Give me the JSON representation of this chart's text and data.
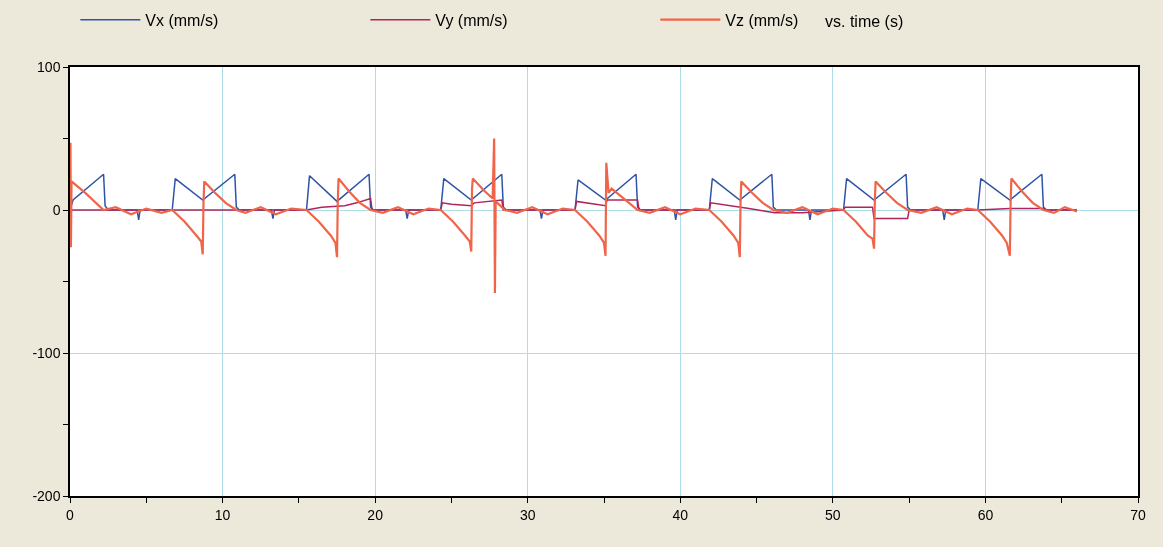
{
  "chart_data": {
    "type": "line",
    "annotations": [
      "vs. time (s)"
    ],
    "xlim": [
      0,
      70
    ],
    "xticks": [
      0,
      {
        "value": 5,
        "label": null
      },
      10,
      {
        "value": 15,
        "label": null
      },
      20,
      {
        "value": 25,
        "label": null
      },
      30,
      {
        "value": 35,
        "label": null
      },
      40,
      {
        "value": 45,
        "label": null
      },
      50,
      {
        "value": 55,
        "label": null
      },
      60,
      {
        "value": 65,
        "label": null
      },
      70
    ],
    "ylim": [
      -200,
      100
    ],
    "yticks": [
      -200,
      {
        "value": -150,
        "label": null
      },
      -100,
      {
        "value": -50,
        "label": null
      },
      0,
      {
        "value": 50,
        "label": null
      },
      100
    ],
    "grid": true,
    "legend": "top",
    "marker": "none",
    "line_style": "solid",
    "series": [
      {
        "name": "Vx (mm/s)",
        "color": "#2f54a5",
        "x": [
          0,
          0.2,
          2.2,
          2.3,
          2.5,
          4.4,
          4.5,
          4.6,
          6.7,
          6.9,
          8.7,
          10.8,
          10.9,
          11.1,
          13.2,
          13.3,
          13.4,
          15.5,
          15.7,
          17.5,
          19.6,
          19.7,
          19.9,
          22.0,
          22.1,
          22.2,
          24.3,
          24.5,
          26.3,
          28.3,
          28.4,
          28.6,
          30.8,
          30.9,
          31.0,
          33.1,
          33.3,
          35.1,
          37.1,
          37.2,
          37.4,
          39.6,
          39.7,
          39.8,
          41.9,
          42.1,
          43.9,
          46.0,
          46.1,
          46.3,
          48.4,
          48.5,
          48.6,
          50.7,
          50.9,
          52.7,
          54.8,
          54.9,
          55.1,
          57.2,
          57.3,
          57.4,
          59.5,
          59.7,
          61.6,
          63.7,
          63.8,
          64.0,
          66.0
        ],
        "values": [
          0,
          7,
          25,
          3,
          0,
          0,
          -7,
          0,
          0,
          22,
          7,
          25,
          2,
          0,
          0,
          -6,
          0,
          0,
          24,
          6,
          25,
          2,
          0,
          0,
          -6,
          0,
          0,
          22,
          7,
          25,
          2,
          0,
          0,
          -6,
          0,
          0,
          21,
          7,
          25,
          2,
          0,
          0,
          -7,
          0,
          0,
          22,
          7,
          25,
          2,
          0,
          0,
          -7,
          0,
          0,
          22,
          7,
          25,
          2,
          0,
          0,
          -7,
          0,
          0,
          22,
          7,
          25,
          2,
          0,
          0
        ]
      },
      {
        "name": "Vy (mm/s)",
        "color": "#b0245a",
        "x": [
          0,
          15.5,
          16.5,
          18.0,
          18.8,
          19.7,
          19.8,
          24.3,
          24.4,
          25.0,
          26.3,
          26.5,
          28.3,
          28.4,
          33.1,
          33.2,
          35.1,
          35.2,
          37.2,
          37.3,
          41.9,
          42.0,
          44.5,
          46.2,
          48.0,
          50.7,
          50.8,
          52.6,
          52.7,
          54.9,
          55.0,
          59.5,
          61.6,
          63.8,
          64.0,
          66.0
        ],
        "values": [
          0,
          0,
          2,
          3,
          5,
          8,
          0,
          0,
          5,
          4,
          3,
          5,
          7,
          0,
          0,
          6,
          3,
          7,
          7,
          0,
          0,
          5,
          1,
          -2,
          -2,
          0,
          2,
          2,
          -6,
          -6,
          0,
          0,
          1,
          1,
          0,
          0
        ]
      },
      {
        "name": "Vz (mm/s)",
        "color": "#f0654a",
        "x": [
          0,
          0.03,
          0.06,
          0.1,
          1.0,
          2.2,
          3.0,
          4.0,
          5.0,
          6.0,
          6.7,
          7.5,
          8.3,
          8.6,
          8.7,
          8.75,
          8.8,
          9.5,
          10.2,
          10.9,
          11.5,
          12.5,
          13.5,
          14.5,
          15.5,
          16.3,
          17.1,
          17.4,
          17.5,
          17.55,
          17.6,
          18.3,
          19.0,
          19.7,
          20.5,
          21.5,
          22.5,
          23.5,
          24.3,
          25.1,
          25.9,
          26.2,
          26.3,
          26.35,
          26.4,
          27.1,
          27.7,
          27.8,
          27.85,
          27.9,
          28.5,
          29.3,
          30.3,
          31.3,
          32.3,
          33.1,
          33.9,
          34.7,
          35.0,
          35.1,
          35.15,
          35.3,
          35.5,
          36.3,
          37.2,
          38.0,
          39.0,
          40.0,
          41.0,
          41.9,
          42.7,
          43.5,
          43.8,
          43.9,
          43.95,
          44.0,
          44.7,
          45.4,
          46.1,
          47.0,
          48.0,
          49.0,
          50.0,
          50.7,
          51.5,
          52.3,
          52.6,
          52.7,
          52.75,
          52.8,
          53.5,
          54.2,
          54.9,
          55.8,
          56.8,
          57.8,
          58.8,
          59.5,
          60.3,
          61.1,
          61.4,
          61.6,
          61.65,
          61.7,
          62.4,
          63.1,
          63.8,
          64.5,
          65.2,
          66.0
        ],
        "values": [
          0,
          47,
          -26,
          20,
          12,
          0,
          2,
          -3,
          1,
          -2,
          0,
          -8,
          -18,
          -22,
          -31,
          5,
          20,
          12,
          5,
          0,
          -2,
          2,
          -3,
          1,
          0,
          -8,
          -18,
          -23,
          -33,
          5,
          22,
          13,
          5,
          0,
          -2,
          2,
          -3,
          1,
          0,
          -8,
          -18,
          -22,
          -29,
          15,
          22,
          14,
          8,
          50,
          -58,
          6,
          0,
          -2,
          2,
          -3,
          1,
          0,
          -8,
          -18,
          -23,
          -32,
          33,
          12,
          15,
          8,
          0,
          -2,
          2,
          -3,
          1,
          0,
          -8,
          -18,
          -23,
          -33,
          5,
          20,
          12,
          5,
          0,
          -2,
          2,
          -3,
          1,
          0,
          -8,
          -18,
          -20,
          -27,
          5,
          20,
          12,
          5,
          0,
          -2,
          2,
          -3,
          1,
          0,
          -8,
          -18,
          -23,
          -32,
          5,
          22,
          13,
          5,
          0,
          -2,
          2,
          -1
        ]
      }
    ]
  }
}
